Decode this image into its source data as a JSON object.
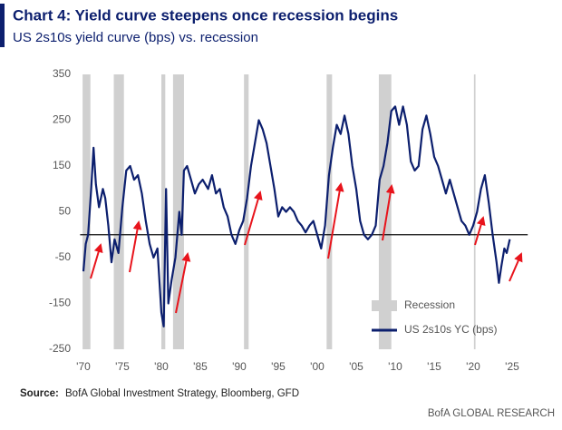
{
  "chart_data": {
    "type": "line",
    "title": "Chart 4: Yield curve steepens once recession begins",
    "subtitle": "US 2s10s yield curve (bps) vs. recession",
    "recession_label": "Recession",
    "recession_color": "#d0d0d0",
    "recessions": [
      [
        1969.9,
        1970.9
      ],
      [
        1973.9,
        1975.2
      ],
      [
        1980.0,
        1980.5
      ],
      [
        1981.5,
        1982.9
      ],
      [
        1990.6,
        1991.2
      ],
      [
        2001.2,
        2001.9
      ],
      [
        2007.9,
        2009.5
      ],
      [
        2020.1,
        2020.3
      ]
    ],
    "series": [
      {
        "name": "US 2s10s YC (bps)",
        "color": "#0c1f6e",
        "x": [
          1970.0,
          1970.3,
          1970.6,
          1971.0,
          1971.3,
          1971.6,
          1972.0,
          1972.5,
          1972.8,
          1973.2,
          1973.6,
          1974.0,
          1974.5,
          1975.0,
          1975.5,
          1976.0,
          1976.5,
          1977.0,
          1977.5,
          1978.0,
          1978.5,
          1979.0,
          1979.5,
          1980.0,
          1980.3,
          1980.6,
          1980.9,
          1981.3,
          1981.8,
          1982.3,
          1982.6,
          1982.9,
          1983.3,
          1983.8,
          1984.3,
          1984.8,
          1985.3,
          1986.0,
          1986.5,
          1987.0,
          1987.5,
          1988.0,
          1988.5,
          1989.0,
          1989.5,
          1990.0,
          1990.5,
          1991.0,
          1991.5,
          1992.0,
          1992.5,
          1993.0,
          1993.5,
          1994.0,
          1994.5,
          1995.0,
          1995.5,
          1996.0,
          1996.5,
          1997.0,
          1997.5,
          1998.0,
          1998.5,
          1999.0,
          1999.5,
          2000.0,
          2000.5,
          2001.0,
          2001.5,
          2002.0,
          2002.5,
          2003.0,
          2003.5,
          2004.0,
          2004.5,
          2005.0,
          2005.5,
          2006.0,
          2006.5,
          2007.0,
          2007.5,
          2008.0,
          2008.5,
          2009.0,
          2009.5,
          2010.0,
          2010.5,
          2011.0,
          2011.5,
          2012.0,
          2012.5,
          2013.0,
          2013.5,
          2014.0,
          2014.5,
          2015.0,
          2015.5,
          2016.0,
          2016.5,
          2017.0,
          2017.5,
          2018.0,
          2018.5,
          2019.0,
          2019.5,
          2020.0,
          2020.5,
          2021.0,
          2021.5,
          2022.0,
          2022.5,
          2023.0,
          2023.3,
          2023.6,
          2024.0,
          2024.3,
          2024.7
        ],
        "values": [
          -80,
          -20,
          0,
          100,
          190,
          110,
          60,
          100,
          80,
          20,
          -60,
          -10,
          -40,
          60,
          140,
          150,
          120,
          130,
          90,
          30,
          -20,
          -50,
          -30,
          -170,
          -200,
          100,
          -150,
          -100,
          -50,
          50,
          0,
          140,
          150,
          120,
          90,
          110,
          120,
          100,
          130,
          90,
          100,
          60,
          40,
          0,
          -20,
          10,
          30,
          80,
          150,
          200,
          250,
          230,
          200,
          150,
          100,
          40,
          60,
          50,
          60,
          50,
          30,
          20,
          5,
          20,
          30,
          0,
          -30,
          20,
          130,
          190,
          240,
          220,
          260,
          220,
          150,
          100,
          30,
          0,
          -10,
          0,
          20,
          120,
          150,
          200,
          270,
          280,
          240,
          280,
          240,
          160,
          140,
          150,
          230,
          260,
          220,
          170,
          150,
          120,
          90,
          120,
          90,
          60,
          30,
          20,
          0,
          20,
          50,
          100,
          130,
          70,
          0,
          -60,
          -105,
          -70,
          -30,
          -40,
          -10
        ]
      }
    ],
    "xlim": [
      1969,
      2027
    ],
    "xticks": [
      {
        "value": 1970,
        "label": "'70"
      },
      {
        "value": 1975,
        "label": "'75"
      },
      {
        "value": 1980,
        "label": "'80"
      },
      {
        "value": 1985,
        "label": "'85"
      },
      {
        "value": 1990,
        "label": "'90"
      },
      {
        "value": 1995,
        "label": "'95"
      },
      {
        "value": 2000,
        "label": "'00"
      },
      {
        "value": 2005,
        "label": "'05"
      },
      {
        "value": 2010,
        "label": "'10"
      },
      {
        "value": 2015,
        "label": "'15"
      },
      {
        "value": 2020,
        "label": "'20"
      },
      {
        "value": 2025,
        "label": "'25"
      }
    ],
    "ylim": [
      -250,
      350
    ],
    "yticks": [
      -250,
      -150,
      -50,
      50,
      150,
      250,
      350
    ],
    "source_label": "Source:",
    "source": "BofA Global Investment Strategy, Bloomberg, GFD",
    "footer": "BofA GLOBAL RESEARCH"
  }
}
